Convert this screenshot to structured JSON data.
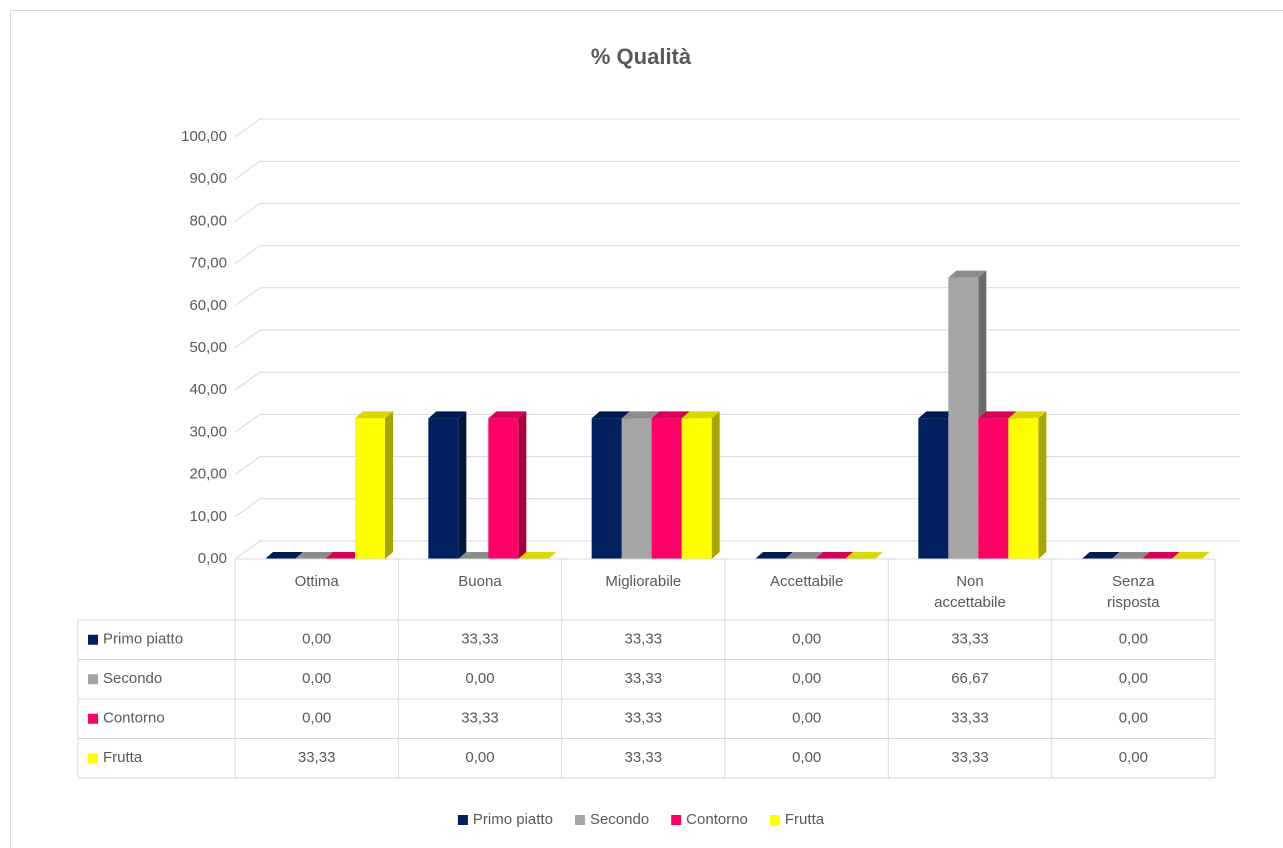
{
  "chart_data": {
    "type": "bar3d",
    "title": "% Qualità",
    "categories": [
      "Ottima",
      "Buona",
      "Migliorabile",
      "Accettabile",
      "Non accettabile",
      "Senza risposta"
    ],
    "series": [
      {
        "name": "Primo piatto",
        "color": "#002060",
        "values": [
          0,
          33.33,
          33.33,
          0,
          33.33,
          0
        ],
        "value_labels": [
          "0,00",
          "33,33",
          "33,33",
          "0,00",
          "33,33",
          "0,00"
        ]
      },
      {
        "name": "Secondo",
        "color": "#a5a5a5",
        "values": [
          0,
          0,
          33.33,
          0,
          66.67,
          0
        ],
        "value_labels": [
          "0,00",
          "0,00",
          "33,33",
          "0,00",
          "66,67",
          "0,00"
        ]
      },
      {
        "name": "Contorno",
        "color": "#ff0066",
        "values": [
          0,
          33.33,
          33.33,
          0,
          33.33,
          0
        ],
        "value_labels": [
          "0,00",
          "33,33",
          "33,33",
          "0,00",
          "33,33",
          "0,00"
        ]
      },
      {
        "name": "Frutta",
        "color": "#ffff00",
        "values": [
          33.33,
          0,
          33.33,
          0,
          33.33,
          0
        ],
        "value_labels": [
          "33,33",
          "0,00",
          "33,33",
          "0,00",
          "33,33",
          "0,00"
        ]
      }
    ],
    "ylim": [
      0,
      100
    ],
    "yticks": [
      {
        "value": 0,
        "label": "0,00"
      },
      {
        "value": 10,
        "label": "10,00"
      },
      {
        "value": 20,
        "label": "20,00"
      },
      {
        "value": 30,
        "label": "30,00"
      },
      {
        "value": 40,
        "label": "40,00"
      },
      {
        "value": 50,
        "label": "50,00"
      },
      {
        "value": 60,
        "label": "60,00"
      },
      {
        "value": 70,
        "label": "70,00"
      },
      {
        "value": 80,
        "label": "80,00"
      },
      {
        "value": 90,
        "label": "90,00"
      },
      {
        "value": 100,
        "label": "100,00"
      }
    ],
    "grid": true,
    "legend": "bottom"
  }
}
